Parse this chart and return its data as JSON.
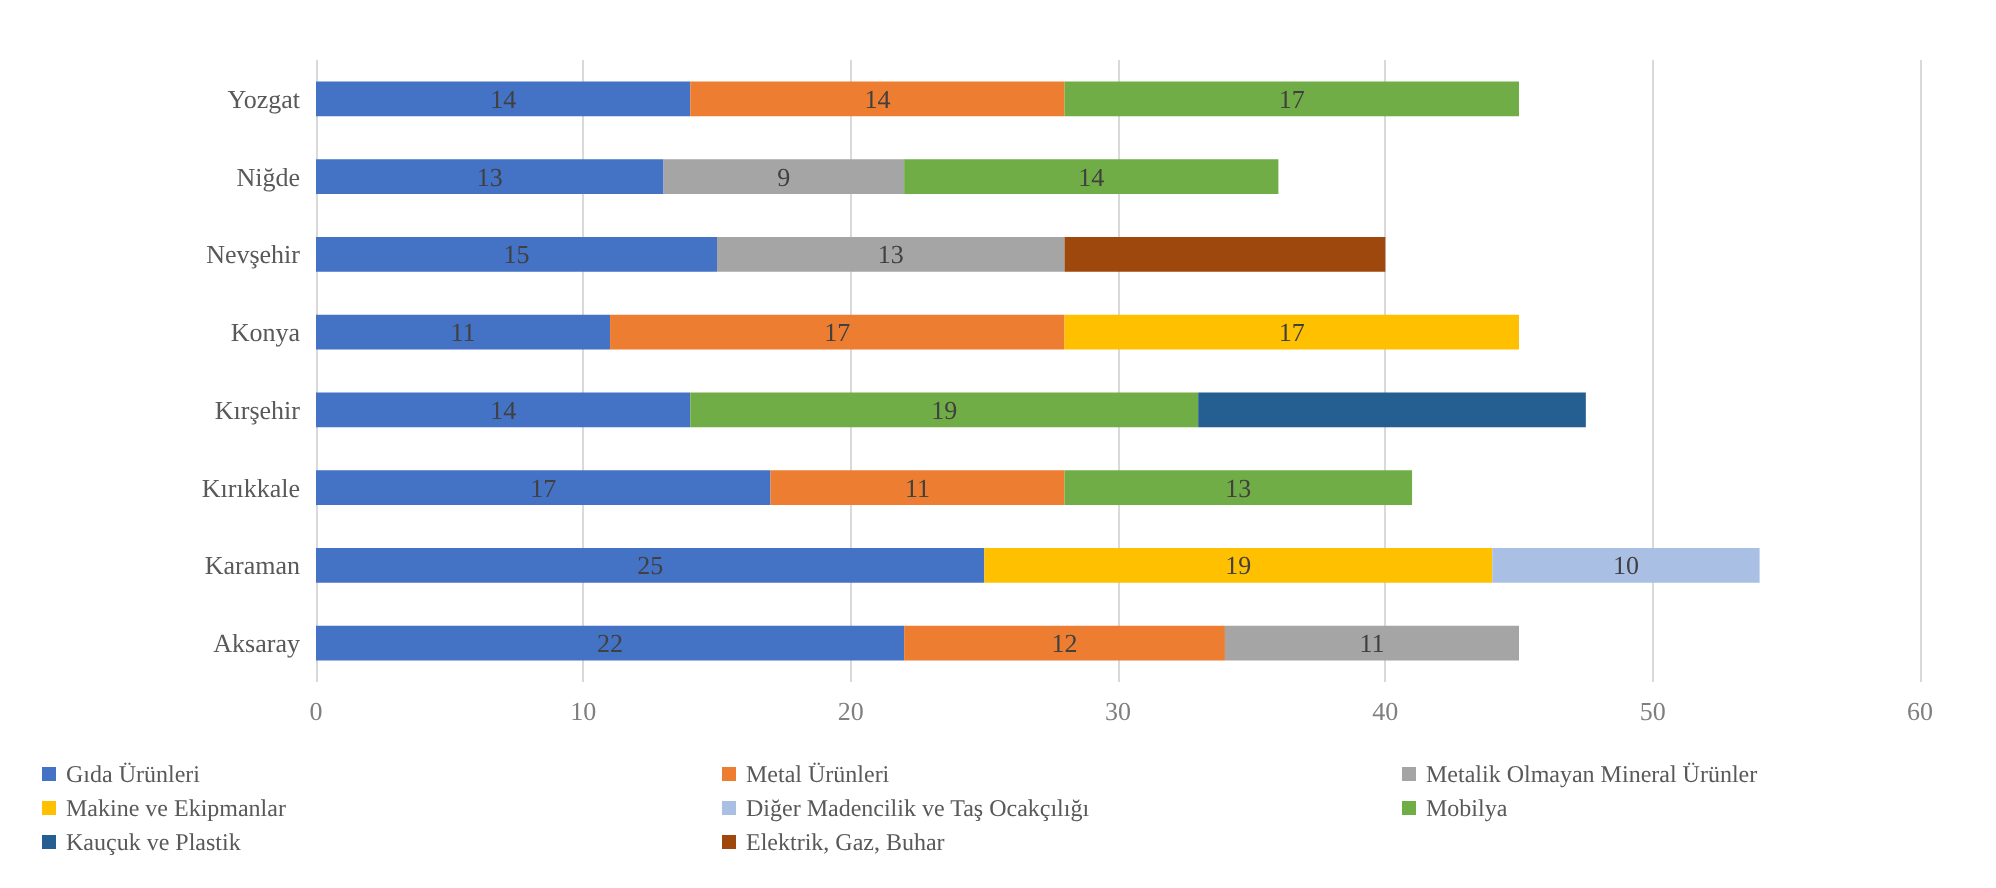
{
  "chart_data": {
    "type": "bar",
    "orientation": "horizontal",
    "stacked": true,
    "categories": [
      "Yozgat",
      "Niğde",
      "Nevşehir",
      "Konya",
      "Kırşehir",
      "Kırıkkale",
      "Karaman",
      "Aksaray"
    ],
    "series": [
      {
        "name": "Gıda Ürünleri",
        "color": "#4472c4",
        "values": [
          14,
          13,
          15,
          11,
          14,
          17,
          25,
          22
        ],
        "value_labels": [
          "14",
          "13",
          "15",
          "11",
          "14",
          "17",
          "25",
          "22"
        ]
      },
      {
        "name": "Metal Ürünleri",
        "color": "#ed7d31",
        "values": [
          14,
          null,
          null,
          17,
          null,
          11,
          null,
          12
        ],
        "value_labels": [
          "14",
          null,
          null,
          "17",
          null,
          "11",
          null,
          "12"
        ]
      },
      {
        "name": "Metalik Olmayan Mineral Ürünler",
        "color": "#a5a5a5",
        "values": [
          null,
          9,
          13,
          null,
          null,
          null,
          null,
          11
        ],
        "value_labels": [
          null,
          "9",
          "13",
          null,
          null,
          null,
          null,
          "11"
        ]
      },
      {
        "name": "Makine ve Ekipmanlar",
        "color": "#ffc000",
        "values": [
          null,
          null,
          null,
          17,
          null,
          null,
          19,
          null
        ],
        "value_labels": [
          null,
          null,
          null,
          "17",
          null,
          null,
          "19",
          null
        ]
      },
      {
        "name": "Diğer Madencilik ve Taş Ocakçılığı",
        "color": "#a9bfe3",
        "values": [
          null,
          null,
          null,
          null,
          null,
          null,
          10,
          null
        ],
        "value_labels": [
          null,
          null,
          null,
          null,
          null,
          null,
          "10",
          null
        ]
      },
      {
        "name": "Mobilya",
        "color": "#70ad47",
        "values": [
          17,
          14,
          null,
          null,
          19,
          13,
          null,
          null
        ],
        "value_labels": [
          "17",
          "14",
          null,
          null,
          "19",
          "13",
          null,
          null
        ]
      },
      {
        "name": "Kauçuk ve Plastik",
        "color": "#255e91",
        "values": [
          null,
          null,
          null,
          null,
          14.5,
          null,
          null,
          null
        ]
      },
      {
        "name": "Elektrik, Gaz, Buhar",
        "color": "#9e480e",
        "values": [
          null,
          null,
          12,
          null,
          null,
          null,
          null,
          null
        ]
      }
    ],
    "xlim": [
      0,
      60
    ],
    "xticks": [
      0,
      10,
      20,
      30,
      40,
      50,
      60
    ],
    "grid": "x",
    "legend": "bottom"
  }
}
